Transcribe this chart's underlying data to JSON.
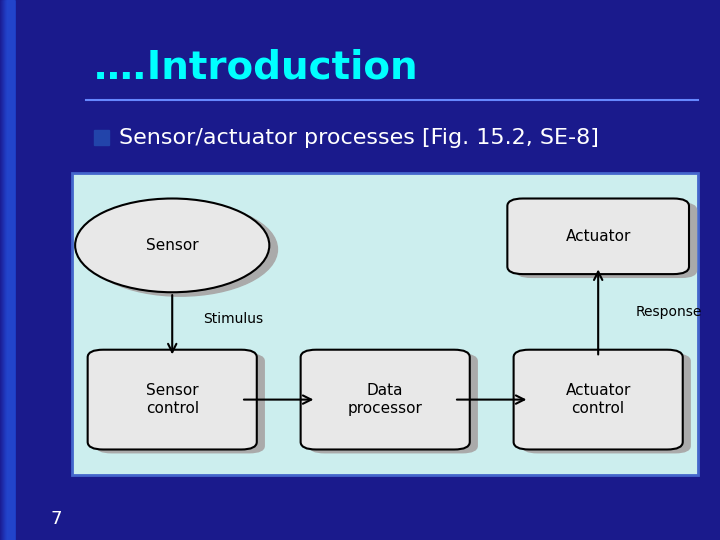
{
  "bg_left_color": "#1a1a8c",
  "bg_right_color": "#2244cc",
  "title_text": "….Introduction",
  "title_color": "#00ffff",
  "title_fontsize": 28,
  "divider_color": "#6688ff",
  "bullet_color": "#2244cc",
  "bullet_text": "Sensor/actuator processes [Fig. 15.2, SE-8]",
  "bullet_fontsize": 16,
  "bullet_text_color": "#ffffff",
  "page_number": "7",
  "page_color": "#ffffff",
  "diagram_bg": "#cceeee",
  "diagram_border": "#4466cc",
  "node_fill": "#e8e8e8",
  "node_stroke": "#000000",
  "shadow_color": "#aaaaaa",
  "arrow_color": "#000000",
  "label_fontsize": 11
}
